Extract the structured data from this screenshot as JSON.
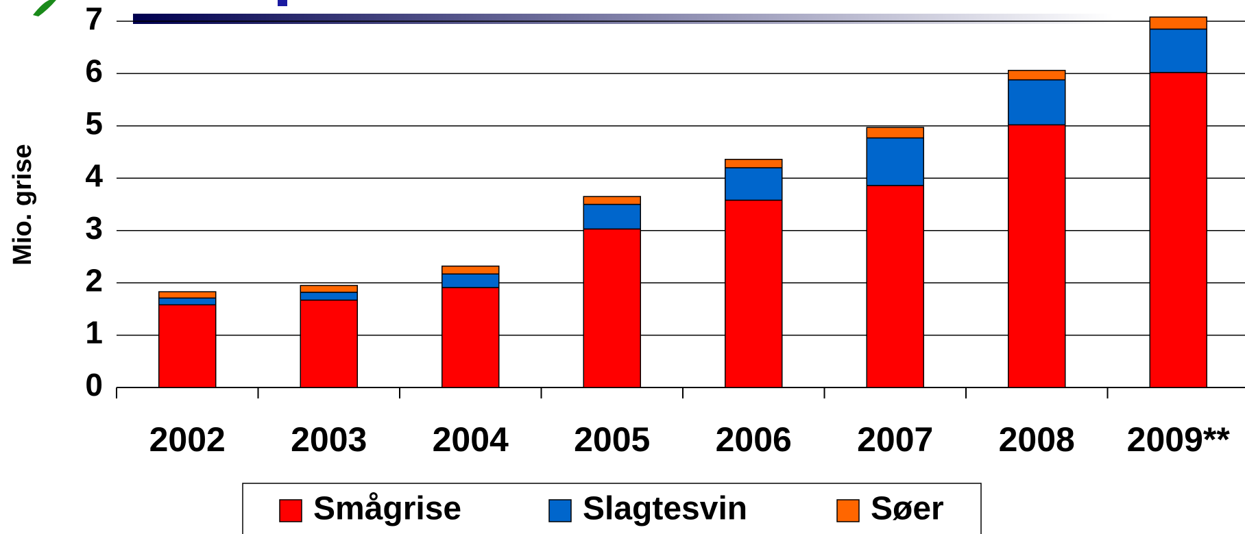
{
  "chart_data": {
    "type": "stacked_bar",
    "y_label": "Mio. grise",
    "categories": [
      "2002",
      "2003",
      "2004",
      "2005",
      "2006",
      "2007",
      "2008",
      "2009**"
    ],
    "series": [
      {
        "name": "Smågrise",
        "color": "#ff0000",
        "values": [
          1.58,
          1.67,
          1.91,
          3.03,
          3.58,
          3.86,
          5.02,
          6.02
        ]
      },
      {
        "name": "Slagtesvin",
        "color": "#0066cc",
        "values": [
          0.13,
          0.15,
          0.26,
          0.47,
          0.62,
          0.91,
          0.86,
          0.83
        ]
      },
      {
        "name": "Søer",
        "color": "#ff6600",
        "values": [
          0.12,
          0.13,
          0.15,
          0.15,
          0.16,
          0.2,
          0.18,
          0.23
        ]
      }
    ],
    "ylim": [
      0,
      7
    ],
    "yticks": [
      0,
      1,
      2,
      3,
      4,
      5,
      6,
      7
    ],
    "grid": true,
    "legend": "bottom"
  }
}
